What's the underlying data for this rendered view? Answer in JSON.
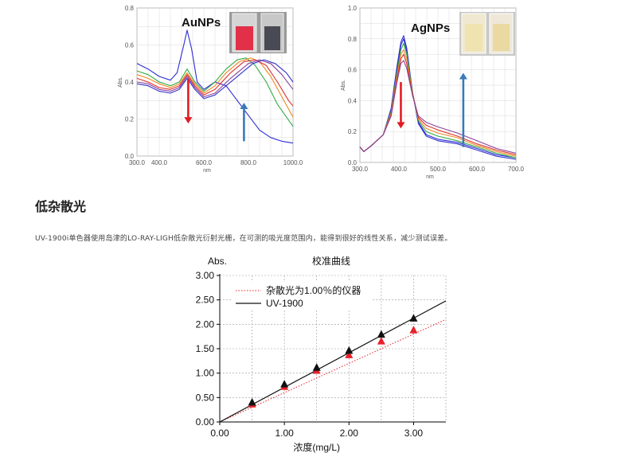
{
  "page": {
    "heading": "低杂散光",
    "description": "UV-1900i单色器使用岛津的LO-RAY-LIGH低杂散光衍射光栅，在可测的吸光度范围内，能得到很好的线性关系，减少测试误差。"
  },
  "colors": {
    "red_marker": "#e8202a",
    "black_marker": "#111111",
    "red_arrow": "#e31b23",
    "blue_arrow": "#3a7ab8",
    "spectra": [
      "#3333cc",
      "#884499",
      "#e03030",
      "#f08a20",
      "#33aa44",
      "#2c2cd6"
    ]
  },
  "chart_data": [
    {
      "type": "line",
      "title": "AuNPs",
      "xlabel": "nm",
      "ylabel": "Abs.",
      "xlim": [
        300,
        1000
      ],
      "ylim": [
        0,
        0.8
      ],
      "x_tick_labels": [
        "300.0",
        "400.0",
        "600.0",
        "800.0",
        "1000.0"
      ],
      "x_ticks": [
        300,
        400,
        600,
        800,
        1000
      ],
      "y_tick_labels": [
        "0.0",
        "0.2",
        "0.4",
        "0.6",
        "0.8"
      ],
      "y_ticks": [
        0,
        0.2,
        0.4,
        0.6,
        0.8
      ],
      "grid": true,
      "arrows": [
        {
          "direction": "down",
          "color": "red",
          "at_x": 530
        },
        {
          "direction": "up",
          "color": "blue",
          "at_x": 780
        }
      ],
      "series": [
        {
          "color": "#2c2cd6",
          "values": [
            [
              300,
              0.5
            ],
            [
              350,
              0.47
            ],
            [
              400,
              0.43
            ],
            [
              450,
              0.41
            ],
            [
              480,
              0.45
            ],
            [
              510,
              0.6
            ],
            [
              525,
              0.68
            ],
            [
              545,
              0.58
            ],
            [
              570,
              0.4
            ],
            [
              600,
              0.36
            ],
            [
              650,
              0.4
            ],
            [
              700,
              0.38
            ],
            [
              750,
              0.3
            ],
            [
              800,
              0.22
            ],
            [
              850,
              0.14
            ],
            [
              900,
              0.1
            ],
            [
              950,
              0.08
            ],
            [
              1000,
              0.07
            ]
          ]
        },
        {
          "color": "#33aa44",
          "values": [
            [
              300,
              0.46
            ],
            [
              350,
              0.44
            ],
            [
              400,
              0.4
            ],
            [
              450,
              0.38
            ],
            [
              490,
              0.4
            ],
            [
              525,
              0.47
            ],
            [
              560,
              0.4
            ],
            [
              600,
              0.35
            ],
            [
              650,
              0.4
            ],
            [
              700,
              0.47
            ],
            [
              750,
              0.52
            ],
            [
              790,
              0.53
            ],
            [
              830,
              0.49
            ],
            [
              880,
              0.4
            ],
            [
              930,
              0.28
            ],
            [
              1000,
              0.16
            ]
          ]
        },
        {
          "color": "#f08a20",
          "values": [
            [
              300,
              0.44
            ],
            [
              350,
              0.42
            ],
            [
              400,
              0.39
            ],
            [
              450,
              0.37
            ],
            [
              490,
              0.39
            ],
            [
              525,
              0.45
            ],
            [
              560,
              0.39
            ],
            [
              600,
              0.34
            ],
            [
              650,
              0.38
            ],
            [
              700,
              0.45
            ],
            [
              760,
              0.51
            ],
            [
              810,
              0.53
            ],
            [
              850,
              0.51
            ],
            [
              900,
              0.43
            ],
            [
              950,
              0.32
            ],
            [
              1000,
              0.21
            ]
          ]
        },
        {
          "color": "#e03030",
          "values": [
            [
              300,
              0.42
            ],
            [
              350,
              0.4
            ],
            [
              400,
              0.37
            ],
            [
              450,
              0.36
            ],
            [
              490,
              0.38
            ],
            [
              525,
              0.44
            ],
            [
              560,
              0.38
            ],
            [
              600,
              0.33
            ],
            [
              650,
              0.36
            ],
            [
              720,
              0.45
            ],
            [
              780,
              0.51
            ],
            [
              830,
              0.52
            ],
            [
              880,
              0.49
            ],
            [
              930,
              0.4
            ],
            [
              980,
              0.3
            ],
            [
              1000,
              0.27
            ]
          ]
        },
        {
          "color": "#884499",
          "values": [
            [
              300,
              0.4
            ],
            [
              350,
              0.39
            ],
            [
              400,
              0.36
            ],
            [
              450,
              0.35
            ],
            [
              490,
              0.37
            ],
            [
              525,
              0.43
            ],
            [
              560,
              0.37
            ],
            [
              600,
              0.32
            ],
            [
              650,
              0.34
            ],
            [
              720,
              0.42
            ],
            [
              800,
              0.5
            ],
            [
              850,
              0.52
            ],
            [
              900,
              0.5
            ],
            [
              950,
              0.44
            ],
            [
              1000,
              0.36
            ]
          ]
        },
        {
          "color": "#3333cc",
          "values": [
            [
              300,
              0.39
            ],
            [
              350,
              0.38
            ],
            [
              400,
              0.35
            ],
            [
              450,
              0.34
            ],
            [
              490,
              0.36
            ],
            [
              525,
              0.42
            ],
            [
              560,
              0.36
            ],
            [
              600,
              0.31
            ],
            [
              650,
              0.33
            ],
            [
              740,
              0.42
            ],
            [
              820,
              0.5
            ],
            [
              870,
              0.52
            ],
            [
              920,
              0.5
            ],
            [
              970,
              0.45
            ],
            [
              1000,
              0.4
            ]
          ]
        }
      ]
    },
    {
      "type": "line",
      "title": "AgNPs",
      "xlabel": "nm",
      "ylabel": "Abs.",
      "xlim": [
        300,
        700
      ],
      "ylim": [
        0,
        1.0
      ],
      "x_tick_labels": [
        "300.0",
        "400.0",
        "500.0",
        "600.0",
        "700.0"
      ],
      "x_ticks": [
        300,
        400,
        500,
        600,
        700
      ],
      "y_tick_labels": [
        "0.0",
        "0.2",
        "0.4",
        "0.6",
        "0.8",
        "1.0"
      ],
      "y_ticks": [
        0,
        0.2,
        0.4,
        0.6,
        0.8,
        1.0
      ],
      "grid": true,
      "arrows": [
        {
          "direction": "down",
          "color": "red",
          "at_x": 405
        },
        {
          "direction": "up",
          "color": "blue",
          "at_x": 565
        }
      ],
      "series": [
        {
          "color": "#3333cc",
          "values": [
            [
              300,
              0.1
            ],
            [
              310,
              0.07
            ],
            [
              330,
              0.11
            ],
            [
              360,
              0.18
            ],
            [
              380,
              0.35
            ],
            [
              395,
              0.62
            ],
            [
              405,
              0.78
            ],
            [
              412,
              0.82
            ],
            [
              420,
              0.74
            ],
            [
              435,
              0.45
            ],
            [
              450,
              0.25
            ],
            [
              470,
              0.17
            ],
            [
              500,
              0.14
            ],
            [
              550,
              0.12
            ],
            [
              600,
              0.08
            ],
            [
              650,
              0.04
            ],
            [
              700,
              0.02
            ]
          ]
        },
        {
          "color": "#2c2cd6",
          "values": [
            [
              300,
              0.1
            ],
            [
              310,
              0.07
            ],
            [
              330,
              0.11
            ],
            [
              360,
              0.18
            ],
            [
              380,
              0.34
            ],
            [
              395,
              0.6
            ],
            [
              405,
              0.76
            ],
            [
              412,
              0.8
            ],
            [
              420,
              0.72
            ],
            [
              435,
              0.45
            ],
            [
              450,
              0.26
            ],
            [
              470,
              0.18
            ],
            [
              500,
              0.15
            ],
            [
              550,
              0.13
            ],
            [
              600,
              0.09
            ],
            [
              650,
              0.05
            ],
            [
              700,
              0.03
            ]
          ]
        },
        {
          "color": "#33aa44",
          "values": [
            [
              300,
              0.1
            ],
            [
              310,
              0.07
            ],
            [
              330,
              0.11
            ],
            [
              360,
              0.18
            ],
            [
              380,
              0.33
            ],
            [
              395,
              0.58
            ],
            [
              405,
              0.73
            ],
            [
              412,
              0.77
            ],
            [
              420,
              0.7
            ],
            [
              435,
              0.45
            ],
            [
              450,
              0.27
            ],
            [
              470,
              0.2
            ],
            [
              500,
              0.17
            ],
            [
              550,
              0.14
            ],
            [
              600,
              0.1
            ],
            [
              650,
              0.06
            ],
            [
              700,
              0.03
            ]
          ]
        },
        {
          "color": "#f08a20",
          "values": [
            [
              300,
              0.1
            ],
            [
              310,
              0.07
            ],
            [
              330,
              0.11
            ],
            [
              360,
              0.18
            ],
            [
              380,
              0.32
            ],
            [
              395,
              0.56
            ],
            [
              405,
              0.7
            ],
            [
              412,
              0.73
            ],
            [
              420,
              0.67
            ],
            [
              435,
              0.44
            ],
            [
              450,
              0.28
            ],
            [
              470,
              0.22
            ],
            [
              500,
              0.19
            ],
            [
              550,
              0.16
            ],
            [
              600,
              0.11
            ],
            [
              650,
              0.07
            ],
            [
              700,
              0.04
            ]
          ]
        },
        {
          "color": "#e03030",
          "values": [
            [
              300,
              0.1
            ],
            [
              310,
              0.07
            ],
            [
              330,
              0.11
            ],
            [
              360,
              0.18
            ],
            [
              380,
              0.31
            ],
            [
              395,
              0.54
            ],
            [
              405,
              0.67
            ],
            [
              412,
              0.7
            ],
            [
              420,
              0.64
            ],
            [
              435,
              0.44
            ],
            [
              450,
              0.29
            ],
            [
              470,
              0.24
            ],
            [
              500,
              0.21
            ],
            [
              550,
              0.17
            ],
            [
              600,
              0.12
            ],
            [
              650,
              0.08
            ],
            [
              700,
              0.05
            ]
          ]
        },
        {
          "color": "#884499",
          "values": [
            [
              300,
              0.1
            ],
            [
              310,
              0.07
            ],
            [
              330,
              0.11
            ],
            [
              360,
              0.18
            ],
            [
              380,
              0.3
            ],
            [
              395,
              0.52
            ],
            [
              405,
              0.64
            ],
            [
              412,
              0.66
            ],
            [
              420,
              0.61
            ],
            [
              435,
              0.43
            ],
            [
              450,
              0.3
            ],
            [
              470,
              0.26
            ],
            [
              500,
              0.23
            ],
            [
              550,
              0.19
            ],
            [
              600,
              0.14
            ],
            [
              650,
              0.09
            ],
            [
              700,
              0.06
            ]
          ]
        }
      ]
    },
    {
      "type": "scatter",
      "title": "校准曲线",
      "xlabel": "浓度(mg/L)",
      "ylabel": "Abs.",
      "xlim": [
        0,
        3.5
      ],
      "ylim": [
        0,
        3.0
      ],
      "x_tick_labels": [
        "0.00",
        "1.00",
        "2.00",
        "3.00"
      ],
      "x_ticks": [
        0,
        1,
        2,
        3
      ],
      "y_tick_labels": [
        "0.00",
        "0.50",
        "1.00",
        "1.50",
        "2.00",
        "2.50",
        "3.00"
      ],
      "y_ticks": [
        0,
        0.5,
        1.0,
        1.5,
        2.0,
        2.5,
        3.0
      ],
      "grid": true,
      "legend_position": "top-left",
      "series": [
        {
          "name": "杂散光为1.00％的仪器",
          "color": "#e8202a",
          "style": "dotted",
          "points": [
            [
              0.5,
              0.37
            ],
            [
              1.0,
              0.73
            ],
            [
              1.5,
              1.06
            ],
            [
              2.0,
              1.38
            ],
            [
              2.5,
              1.66
            ],
            [
              3.0,
              1.89
            ]
          ],
          "fit": [
            [
              0,
              0
            ],
            [
              3.5,
              2.1
            ]
          ]
        },
        {
          "name": "UV-1900",
          "color": "#111111",
          "style": "solid",
          "points": [
            [
              0.5,
              0.41
            ],
            [
              1.0,
              0.78
            ],
            [
              1.5,
              1.12
            ],
            [
              2.0,
              1.47
            ],
            [
              2.5,
              1.8
            ],
            [
              3.0,
              2.13
            ]
          ],
          "fit": [
            [
              0,
              0
            ],
            [
              3.5,
              2.48
            ]
          ]
        }
      ]
    }
  ]
}
